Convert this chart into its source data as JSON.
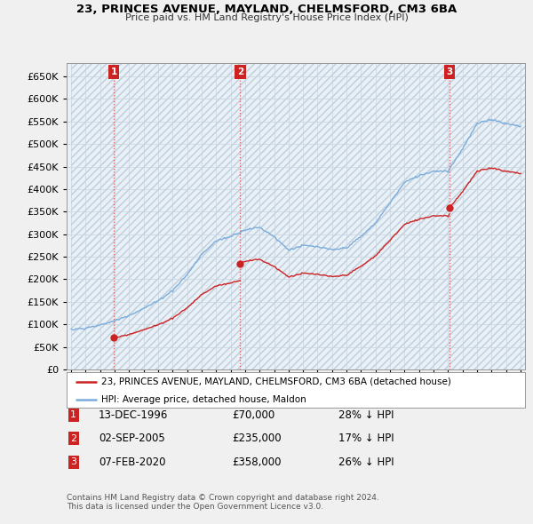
{
  "title1": "23, PRINCES AVENUE, MAYLAND, CHELMSFORD, CM3 6BA",
  "title2": "Price paid vs. HM Land Registry's House Price Index (HPI)",
  "legend_property": "23, PRINCES AVENUE, MAYLAND, CHELMSFORD, CM3 6BA (detached house)",
  "legend_hpi": "HPI: Average price, detached house, Maldon",
  "sale_prices": [
    70000,
    235000,
    358000
  ],
  "sale_labels": [
    "1",
    "2",
    "3"
  ],
  "sale_info": [
    [
      "1",
      "13-DEC-1996",
      "£70,000",
      "28% ↓ HPI"
    ],
    [
      "2",
      "02-SEP-2005",
      "£235,000",
      "17% ↓ HPI"
    ],
    [
      "3",
      "07-FEB-2020",
      "£358,000",
      "26% ↓ HPI"
    ]
  ],
  "footnote1": "Contains HM Land Registry data © Crown copyright and database right 2024.",
  "footnote2": "This data is licensed under the Open Government Licence v3.0.",
  "ylim": [
    0,
    680000
  ],
  "yticks": [
    0,
    50000,
    100000,
    150000,
    200000,
    250000,
    300000,
    350000,
    400000,
    450000,
    500000,
    550000,
    600000,
    650000
  ],
  "bg_color": "#f0f0f0",
  "plot_bg": "#e8f0f8",
  "grid_color": "#c8d4e0",
  "hpi_color": "#7aaddc",
  "sale_line_color": "#cc2222",
  "sale_dot_color": "#cc2222",
  "vline_color": "#dd4444",
  "label_box_color": "#cc2222",
  "xstart": 1994,
  "xend": 2025,
  "hpi_keypoints_t": [
    1994.0,
    1995.0,
    1996.0,
    1997.0,
    1998.0,
    1999.0,
    2000.0,
    2001.0,
    2002.0,
    2003.0,
    2004.0,
    2005.0,
    2006.0,
    2007.0,
    2008.0,
    2009.0,
    2010.0,
    2011.0,
    2012.0,
    2013.0,
    2014.0,
    2015.0,
    2016.0,
    2017.0,
    2018.0,
    2019.0,
    2020.0,
    2021.0,
    2022.0,
    2023.0,
    2024.0,
    2025.0
  ],
  "hpi_keypoints_v": [
    88000,
    92000,
    98000,
    108000,
    120000,
    135000,
    152000,
    175000,
    210000,
    255000,
    285000,
    295000,
    310000,
    315000,
    295000,
    265000,
    275000,
    272000,
    265000,
    270000,
    295000,
    325000,
    370000,
    415000,
    430000,
    440000,
    440000,
    490000,
    545000,
    555000,
    545000,
    540000
  ],
  "sale_times": [
    1996.958,
    2005.667,
    2020.083
  ]
}
